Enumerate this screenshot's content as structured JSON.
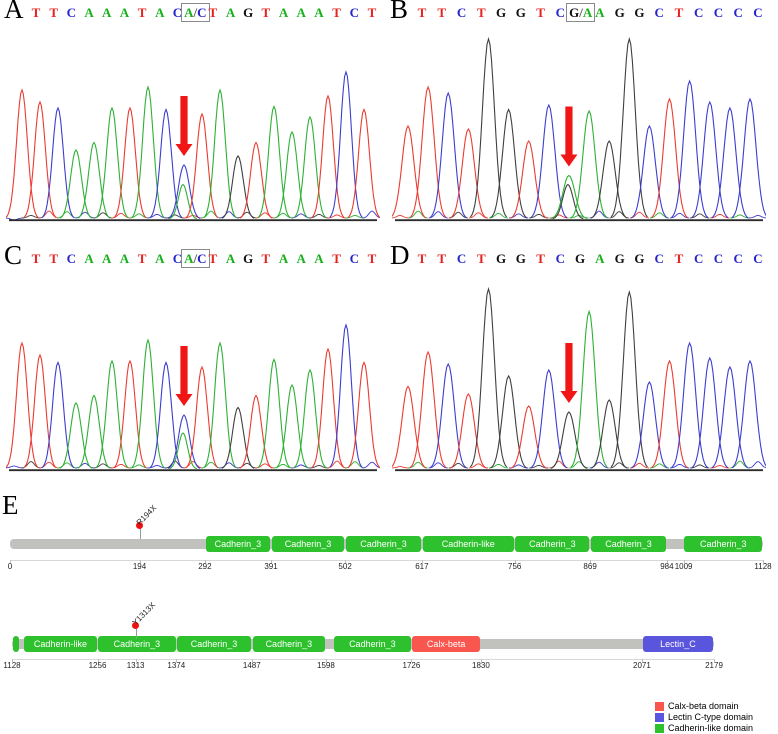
{
  "colors": {
    "trace": {
      "T": "#ed3b31",
      "A": "#2eb135",
      "C": "#3d3dd0",
      "G": "#3f3f3f"
    },
    "letters": {
      "T": "#e62320",
      "A": "#15b01a",
      "C": "#2525cc",
      "G": "#111111",
      "slash": "#555555"
    },
    "arrow": "#f01616",
    "domain": {
      "cadherin": "#2dc22d",
      "calx": "#f9564f",
      "lectin": "#5a55dd"
    },
    "backbone": "#c1c1be",
    "mutation_dot": "#ee1111",
    "baseline": "#2b2b2b"
  },
  "chart_data": [
    {
      "type": "line",
      "subtype": "sanger-chromatogram",
      "label": "A",
      "sequence": [
        {
          "t": "T"
        },
        {
          "t": "T"
        },
        {
          "t": "C"
        },
        {
          "t": "A"
        },
        {
          "t": "A"
        },
        {
          "t": "A"
        },
        {
          "t": "T"
        },
        {
          "t": "A"
        },
        {
          "t": "C"
        },
        {
          "box": [
            "A",
            "C"
          ]
        },
        {
          "t": "T"
        },
        {
          "t": "A"
        },
        {
          "t": "G"
        },
        {
          "t": "T"
        },
        {
          "t": "A"
        },
        {
          "t": "A"
        },
        {
          "t": "A"
        },
        {
          "t": "T"
        },
        {
          "t": "C"
        },
        {
          "t": "T"
        }
      ],
      "peaks": [
        {
          "b": "T",
          "h": 0.86
        },
        {
          "b": "T",
          "h": 0.78
        },
        {
          "b": "C",
          "h": 0.74
        },
        {
          "b": "A",
          "h": 0.46
        },
        {
          "b": "A",
          "h": 0.51
        },
        {
          "b": "A",
          "h": 0.74
        },
        {
          "b": "T",
          "h": 0.74
        },
        {
          "b": "A",
          "h": 0.88
        },
        {
          "b": "C",
          "h": 0.73
        },
        {
          "b": "C",
          "h": 0.36,
          "b2": "A",
          "h2": 0.23
        },
        {
          "b": "T",
          "h": 0.7
        },
        {
          "b": "A",
          "h": 0.86
        },
        {
          "b": "G",
          "h": 0.42
        },
        {
          "b": "T",
          "h": 0.51
        },
        {
          "b": "A",
          "h": 0.75
        },
        {
          "b": "A",
          "h": 0.58
        },
        {
          "b": "A",
          "h": 0.68
        },
        {
          "b": "T",
          "h": 0.82
        },
        {
          "b": "C",
          "h": 0.98
        },
        {
          "b": "T",
          "h": 0.73
        }
      ],
      "arrow_index": 9
    },
    {
      "type": "line",
      "subtype": "sanger-chromatogram",
      "label": "B",
      "sequence": [
        {
          "t": "T"
        },
        {
          "t": "T"
        },
        {
          "t": "C"
        },
        {
          "t": "T"
        },
        {
          "t": "G"
        },
        {
          "t": "G"
        },
        {
          "t": "T"
        },
        {
          "t": "C"
        },
        {
          "box": [
            "G",
            "A"
          ]
        },
        {
          "t": "A"
        },
        {
          "t": "G"
        },
        {
          "t": "G"
        },
        {
          "t": "C"
        },
        {
          "t": "T"
        },
        {
          "t": "C"
        },
        {
          "t": "C"
        },
        {
          "t": "C"
        },
        {
          "t": "C"
        }
      ],
      "peaks": [
        {
          "b": "T",
          "h": 0.62
        },
        {
          "b": "T",
          "h": 0.88
        },
        {
          "b": "C",
          "h": 0.84
        },
        {
          "b": "T",
          "h": 0.6
        },
        {
          "b": "G",
          "h": 1.2
        },
        {
          "b": "G",
          "h": 0.73
        },
        {
          "b": "T",
          "h": 0.52
        },
        {
          "b": "C",
          "h": 0.76
        },
        {
          "b": "A",
          "h": 0.29,
          "b2": "G",
          "h2": 0.23
        },
        {
          "b": "A",
          "h": 0.72
        },
        {
          "b": "G",
          "h": 0.52
        },
        {
          "b": "G",
          "h": 1.2
        },
        {
          "b": "C",
          "h": 0.62
        },
        {
          "b": "T",
          "h": 0.8
        },
        {
          "b": "C",
          "h": 0.92
        },
        {
          "b": "C",
          "h": 0.78
        },
        {
          "b": "C",
          "h": 0.74
        },
        {
          "b": "C",
          "h": 0.8
        }
      ],
      "arrow_index": 8
    },
    {
      "type": "line",
      "subtype": "sanger-chromatogram",
      "label": "C",
      "sequence": [
        {
          "t": "T"
        },
        {
          "t": "T"
        },
        {
          "t": "C"
        },
        {
          "t": "A"
        },
        {
          "t": "A"
        },
        {
          "t": "A"
        },
        {
          "t": "T"
        },
        {
          "t": "A"
        },
        {
          "t": "C"
        },
        {
          "box": [
            "A",
            "C"
          ]
        },
        {
          "t": "T"
        },
        {
          "t": "A"
        },
        {
          "t": "G"
        },
        {
          "t": "T"
        },
        {
          "t": "A"
        },
        {
          "t": "A"
        },
        {
          "t": "A"
        },
        {
          "t": "T"
        },
        {
          "t": "C"
        },
        {
          "t": "T"
        }
      ],
      "peaks": [
        {
          "b": "T",
          "h": 0.84
        },
        {
          "b": "T",
          "h": 0.76
        },
        {
          "b": "C",
          "h": 0.71
        },
        {
          "b": "A",
          "h": 0.44
        },
        {
          "b": "A",
          "h": 0.49
        },
        {
          "b": "A",
          "h": 0.72
        },
        {
          "b": "T",
          "h": 0.72
        },
        {
          "b": "A",
          "h": 0.86
        },
        {
          "b": "C",
          "h": 0.71
        },
        {
          "b": "C",
          "h": 0.36,
          "b2": "A",
          "h2": 0.24
        },
        {
          "b": "T",
          "h": 0.68
        },
        {
          "b": "A",
          "h": 0.84
        },
        {
          "b": "G",
          "h": 0.41
        },
        {
          "b": "T",
          "h": 0.49
        },
        {
          "b": "A",
          "h": 0.73
        },
        {
          "b": "A",
          "h": 0.56
        },
        {
          "b": "A",
          "h": 0.66
        },
        {
          "b": "T",
          "h": 0.8
        },
        {
          "b": "C",
          "h": 0.96
        },
        {
          "b": "T",
          "h": 0.71
        }
      ],
      "arrow_index": 9
    },
    {
      "type": "line",
      "subtype": "sanger-chromatogram",
      "label": "D",
      "sequence": [
        {
          "t": "T"
        },
        {
          "t": "T"
        },
        {
          "t": "C"
        },
        {
          "t": "T"
        },
        {
          "t": "G"
        },
        {
          "t": "G"
        },
        {
          "t": "T"
        },
        {
          "t": "C"
        },
        {
          "t": "G"
        },
        {
          "t": "A"
        },
        {
          "t": "G"
        },
        {
          "t": "G"
        },
        {
          "t": "C"
        },
        {
          "t": "T"
        },
        {
          "t": "C"
        },
        {
          "t": "C"
        },
        {
          "t": "C"
        },
        {
          "t": "C"
        }
      ],
      "peaks": [
        {
          "b": "T",
          "h": 0.55
        },
        {
          "b": "T",
          "h": 0.78
        },
        {
          "b": "C",
          "h": 0.7
        },
        {
          "b": "T",
          "h": 0.5
        },
        {
          "b": "G",
          "h": 1.2
        },
        {
          "b": "G",
          "h": 0.62
        },
        {
          "b": "T",
          "h": 0.42
        },
        {
          "b": "C",
          "h": 0.66
        },
        {
          "b": "G",
          "h": 0.38
        },
        {
          "b": "A",
          "h": 1.05
        },
        {
          "b": "G",
          "h": 0.46
        },
        {
          "b": "G",
          "h": 1.18
        },
        {
          "b": "C",
          "h": 0.58
        },
        {
          "b": "T",
          "h": 0.72
        },
        {
          "b": "C",
          "h": 0.84
        },
        {
          "b": "C",
          "h": 0.74
        },
        {
          "b": "C",
          "h": 0.68
        },
        {
          "b": "C",
          "h": 0.72
        }
      ],
      "arrow_index": 8
    },
    {
      "type": "table",
      "subtype": "protein-domain-diagram",
      "label": "E",
      "rows": [
        {
          "start": 0,
          "end": 1128,
          "ticks": [
            0,
            194,
            292,
            391,
            502,
            617,
            756,
            869,
            984,
            1009,
            1128
          ],
          "domains": [
            {
              "name": "Cadherin_3",
              "start": 292,
              "end": 391,
              "type": "cadherin"
            },
            {
              "name": "Cadherin_3",
              "start": 391,
              "end": 502,
              "type": "cadherin"
            },
            {
              "name": "Cadherin_3",
              "start": 502,
              "end": 617,
              "type": "cadherin"
            },
            {
              "name": "Cadherin-like",
              "start": 617,
              "end": 756,
              "type": "cadherin"
            },
            {
              "name": "Cadherin_3",
              "start": 756,
              "end": 869,
              "type": "cadherin"
            },
            {
              "name": "Cadherin_3",
              "start": 869,
              "end": 984,
              "type": "cadherin"
            },
            {
              "name": "Cadherin_3",
              "start": 1009,
              "end": 1128,
              "type": "cadherin"
            }
          ],
          "mutation": {
            "label": "R194X",
            "position": 194
          }
        },
        {
          "start": 1128,
          "end": 2179,
          "ticks": [
            1128,
            1256,
            1313,
            1374,
            1487,
            1598,
            1726,
            1830,
            2071,
            2179
          ],
          "domains": [
            {
              "name": "",
              "start": 1128,
              "end": 1140,
              "type": "cadherin"
            },
            {
              "name": "Cadherin-like",
              "start": 1145,
              "end": 1256,
              "type": "cadherin"
            },
            {
              "name": "Cadherin_3",
              "start": 1256,
              "end": 1374,
              "type": "cadherin"
            },
            {
              "name": "Cadherin_3",
              "start": 1374,
              "end": 1487,
              "type": "cadherin"
            },
            {
              "name": "Cadherin_3",
              "start": 1487,
              "end": 1598,
              "type": "cadherin"
            },
            {
              "name": "Cadherin_3",
              "start": 1609,
              "end": 1726,
              "type": "cadherin"
            },
            {
              "name": "Calx-beta",
              "start": 1726,
              "end": 1830,
              "type": "calx"
            },
            {
              "name": "Lectin_C",
              "start": 2071,
              "end": 2179,
              "type": "lectin"
            }
          ],
          "mutation": {
            "label": "Y1313X",
            "position": 1313
          }
        }
      ],
      "legend": [
        {
          "label": "Calx-beta domain",
          "type": "calx"
        },
        {
          "label": "Lectin C-type domain",
          "type": "lectin"
        },
        {
          "label": "Cadherin-like domain",
          "type": "cadherin"
        }
      ]
    }
  ]
}
